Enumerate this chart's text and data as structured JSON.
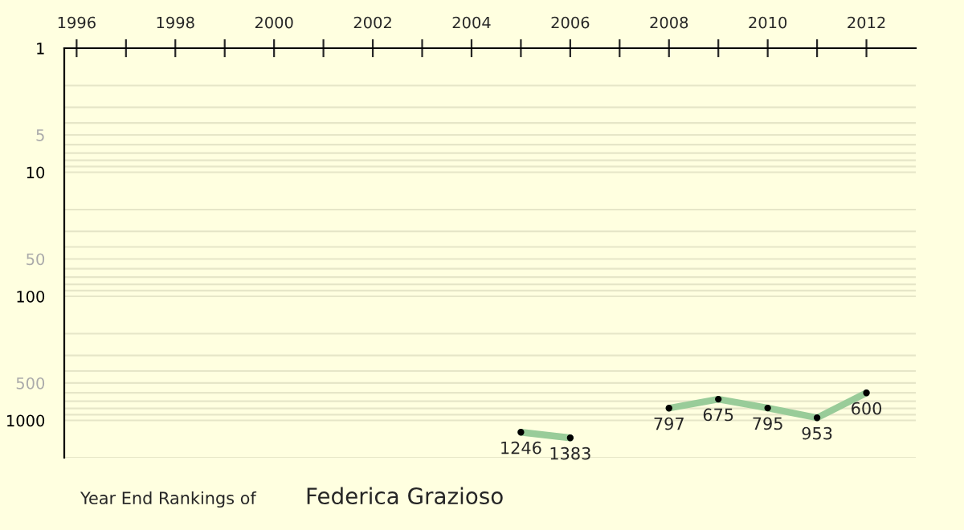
{
  "chart_data": {
    "type": "line",
    "title": "Year End Rankings of",
    "subtitle": "Federica Grazioso",
    "x": [
      2005,
      2006,
      2007,
      2008,
      2009,
      2010,
      2011,
      2012
    ],
    "series": [
      {
        "color": "#99cc99",
        "values": [
          1246,
          1383,
          null,
          797,
          675,
          795,
          953,
          600
        ]
      }
    ],
    "data_labels": true,
    "marker": "circle",
    "line_style": "solid",
    "log": true,
    "grid": "y",
    "xlim": [
      1995.75,
      2013
    ],
    "xticks": [
      1996,
      {
        "value": 1997,
        "label": null
      },
      1998,
      {
        "value": 1999,
        "label": null
      },
      2000,
      {
        "value": 2001,
        "label": null
      },
      2002,
      {
        "value": 2003,
        "label": null
      },
      2004,
      {
        "value": 2005,
        "label": null
      },
      2006,
      {
        "value": 2007,
        "label": null
      },
      2008,
      {
        "value": 2009,
        "label": null
      },
      2010,
      {
        "value": 2011,
        "label": null
      },
      2012
    ],
    "ylim": [
      2000,
      1
    ],
    "yticks": [
      1,
      5,
      10,
      50,
      100,
      500,
      1000
    ]
  }
}
